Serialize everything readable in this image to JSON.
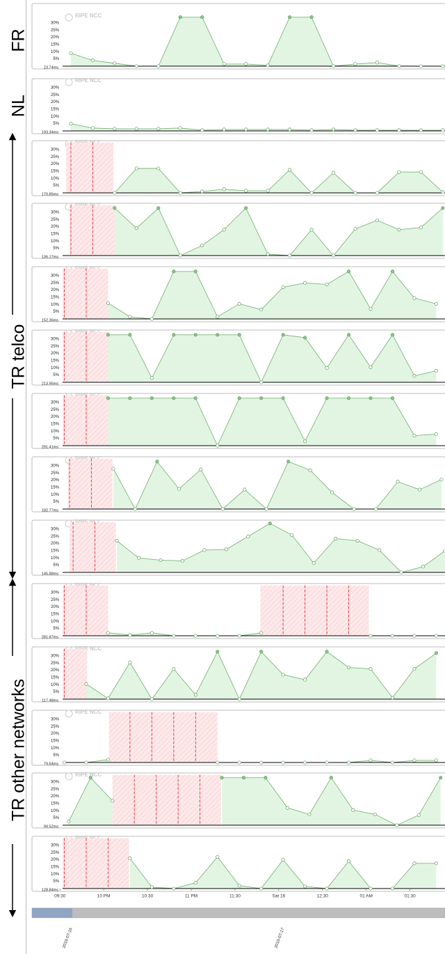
{
  "groups": [
    "FR",
    "NL",
    "TR telco",
    "TR other networks"
  ],
  "watermark": "RIPE NCC",
  "timeline": {
    "dates": [
      "2016-07-16",
      "2016-07-17"
    ]
  },
  "chart_data": [
    {
      "type": "area",
      "baseline_label": "23.74ms",
      "xlim": [
        21.53,
        25.9
      ],
      "ylim": [
        0,
        35
      ],
      "yticks": [
        {
          "value": 5,
          "label": "5%"
        },
        {
          "value": 10,
          "label": "10%"
        },
        {
          "value": 15,
          "label": "15%"
        },
        {
          "value": 20,
          "label": "20%"
        },
        {
          "value": 25,
          "label": "25%"
        },
        {
          "value": 30,
          "label": "30%"
        }
      ],
      "x": [
        21.625,
        21.875,
        22.125,
        22.375,
        22.625,
        22.875,
        23.125,
        23.375,
        23.625,
        23.875,
        24.125,
        24.375,
        24.625,
        24.875,
        25.125,
        25.375,
        25.625,
        25.875
      ],
      "values": [
        9,
        4,
        2,
        0,
        0,
        34,
        34,
        1.5,
        1.5,
        0.5,
        34,
        34,
        0,
        1.5,
        2.5,
        0,
        0,
        0
      ],
      "outages": []
    },
    {
      "type": "area",
      "baseline_label": "193.34ms",
      "xlim": [
        21.53,
        25.9
      ],
      "ylim": [
        0,
        35
      ],
      "yticks": [
        {
          "value": 5,
          "label": "5%"
        },
        {
          "value": 10,
          "label": "10%"
        },
        {
          "value": 15,
          "label": "15%"
        },
        {
          "value": 20,
          "label": "20%"
        },
        {
          "value": 25,
          "label": "25%"
        },
        {
          "value": 30,
          "label": "30%"
        }
      ],
      "x": [
        21.625,
        21.875,
        22.125,
        22.375,
        22.625,
        22.875,
        23.125,
        23.375,
        23.625,
        23.875,
        24.125,
        24.375,
        24.625,
        24.875,
        25.125,
        25.375,
        25.625,
        25.875
      ],
      "values": [
        5,
        2,
        1.5,
        1.5,
        1.5,
        2,
        0.5,
        1,
        1,
        1,
        1,
        0.5,
        1,
        0.5,
        0.5,
        0.5,
        0.5,
        0.5
      ],
      "outages": []
    },
    {
      "type": "area",
      "baseline_label": "170.85ms",
      "xlim": [
        21.53,
        25.9
      ],
      "ylim": [
        0,
        35
      ],
      "yticks": [
        {
          "value": 5,
          "label": "5%"
        },
        {
          "value": 10,
          "label": "10%"
        },
        {
          "value": 15,
          "label": "15%"
        },
        {
          "value": 20,
          "label": "20%"
        },
        {
          "value": 25,
          "label": "25%"
        },
        {
          "value": 30,
          "label": "30%"
        }
      ],
      "x": [
        21.625,
        21.875,
        22.125,
        22.375,
        22.625,
        22.875,
        23.125,
        23.375,
        23.625,
        23.875,
        24.125,
        24.375,
        24.625,
        24.875,
        25.125,
        25.375,
        25.625,
        25.875
      ],
      "values": [
        null,
        null,
        0,
        17,
        17,
        0,
        1,
        2.5,
        1.5,
        1.5,
        16,
        0,
        14,
        0,
        0,
        14.5,
        14.5,
        0.5
      ],
      "outages": [
        [
          21.57,
          22.11
        ]
      ]
    },
    {
      "type": "area",
      "baseline_label": "136.17ms",
      "xlim": [
        21.53,
        25.9
      ],
      "ylim": [
        0,
        35
      ],
      "yticks": [
        {
          "value": 5,
          "label": "5%"
        },
        {
          "value": 10,
          "label": "10%"
        },
        {
          "value": 15,
          "label": "15%"
        },
        {
          "value": 20,
          "label": "20%"
        },
        {
          "value": 25,
          "label": "25%"
        },
        {
          "value": 30,
          "label": "30%"
        }
      ],
      "x": [
        21.625,
        21.875,
        22.125,
        22.375,
        22.625,
        22.875,
        23.125,
        23.375,
        23.625,
        23.875,
        24.125,
        24.375,
        24.625,
        24.875,
        25.125,
        25.375,
        25.625,
        25.875
      ],
      "values": [
        null,
        null,
        33,
        19,
        33,
        0,
        7,
        18,
        33,
        1,
        0,
        18,
        0,
        18.5,
        24.5,
        18,
        19.5,
        33
      ],
      "outages": [
        [
          21.61,
          22.13
        ]
      ]
    },
    {
      "type": "area",
      "baseline_label": "152.36ms",
      "xlim": [
        21.53,
        25.9
      ],
      "ylim": [
        0,
        35
      ],
      "yticks": [
        {
          "value": 5,
          "label": "5%"
        },
        {
          "value": 10,
          "label": "10%"
        },
        {
          "value": 15,
          "label": "15%"
        },
        {
          "value": 20,
          "label": "20%"
        },
        {
          "value": 25,
          "label": "25%"
        },
        {
          "value": 30,
          "label": "30%"
        }
      ],
      "x": [
        21.55,
        21.8,
        22.05,
        22.3,
        22.55,
        22.8,
        23.05,
        23.3,
        23.55,
        23.8,
        24.05,
        24.3,
        24.55,
        24.8,
        25.05,
        25.3,
        25.55,
        25.8
      ],
      "values": [
        null,
        null,
        11,
        1.5,
        0,
        33,
        33,
        1.5,
        10.5,
        6.5,
        22,
        25,
        24,
        33,
        7,
        33,
        14.5,
        10.5
      ],
      "outages": [
        [
          21.53,
          22.05
        ]
      ]
    },
    {
      "type": "area",
      "baseline_label": "213.95ms",
      "xlim": [
        21.53,
        25.9
      ],
      "ylim": [
        0,
        35
      ],
      "yticks": [
        {
          "value": 5,
          "label": "5%"
        },
        {
          "value": 10,
          "label": "10%"
        },
        {
          "value": 15,
          "label": "15%"
        },
        {
          "value": 20,
          "label": "20%"
        },
        {
          "value": 25,
          "label": "25%"
        },
        {
          "value": 30,
          "label": "30%"
        }
      ],
      "x": [
        21.55,
        21.8,
        22.05,
        22.3,
        22.55,
        22.8,
        23.05,
        23.3,
        23.55,
        23.8,
        24.05,
        24.3,
        24.55,
        24.8,
        25.05,
        25.3,
        25.55,
        25.8
      ],
      "values": [
        null,
        null,
        33,
        33,
        3,
        33,
        33,
        33,
        33,
        0,
        33,
        31,
        10,
        33,
        10.5,
        33,
        4.5,
        8
      ],
      "outages": [
        [
          21.53,
          22.06
        ]
      ]
    },
    {
      "type": "area",
      "baseline_label": "291.41ms",
      "xlim": [
        21.53,
        25.9
      ],
      "ylim": [
        0,
        35
      ],
      "yticks": [
        {
          "value": 5,
          "label": "5%"
        },
        {
          "value": 10,
          "label": "10%"
        },
        {
          "value": 15,
          "label": "15%"
        },
        {
          "value": 20,
          "label": "20%"
        },
        {
          "value": 25,
          "label": "25%"
        },
        {
          "value": 30,
          "label": "30%"
        }
      ],
      "x": [
        21.55,
        21.8,
        22.05,
        22.3,
        22.55,
        22.8,
        23.05,
        23.3,
        23.55,
        23.8,
        24.05,
        24.3,
        24.55,
        24.8,
        25.05,
        25.3,
        25.55,
        25.8
      ],
      "values": [
        null,
        null,
        33,
        33,
        33,
        33,
        33,
        0,
        33,
        33,
        33,
        3,
        33,
        33,
        33,
        33,
        7,
        8
      ],
      "outages": [
        [
          21.53,
          22.05
        ]
      ]
    },
    {
      "type": "area",
      "baseline_label": "182.77ms",
      "xlim": [
        21.53,
        25.9
      ],
      "ylim": [
        0,
        35
      ],
      "yticks": [
        {
          "value": 5,
          "label": "5%"
        },
        {
          "value": 10,
          "label": "10%"
        },
        {
          "value": 15,
          "label": "15%"
        },
        {
          "value": 20,
          "label": "20%"
        },
        {
          "value": 25,
          "label": "25%"
        },
        {
          "value": 30,
          "label": "30%"
        }
      ],
      "x": [
        21.61,
        21.86,
        22.11,
        22.36,
        22.61,
        22.86,
        23.11,
        23.36,
        23.61,
        23.86,
        24.11,
        24.36,
        24.61,
        24.86,
        25.11,
        25.36,
        25.61,
        25.86
      ],
      "values": [
        null,
        null,
        28,
        0,
        33,
        14,
        27.5,
        0,
        13.5,
        0,
        33,
        27,
        11.5,
        0,
        0,
        19,
        13.5,
        20.5
      ],
      "outages": [
        [
          21.59,
          22.1
        ]
      ]
    },
    {
      "type": "area",
      "baseline_label": "145.88ms",
      "xlim": [
        21.53,
        25.9
      ],
      "ylim": [
        0,
        35
      ],
      "yticks": [
        {
          "value": 5,
          "label": "5%"
        },
        {
          "value": 10,
          "label": "10%"
        },
        {
          "value": 15,
          "label": "15%"
        },
        {
          "value": 20,
          "label": "20%"
        },
        {
          "value": 25,
          "label": "25%"
        },
        {
          "value": 30,
          "label": "30%"
        }
      ],
      "x": [
        21.65,
        21.9,
        22.15,
        22.4,
        22.65,
        22.9,
        23.15,
        23.4,
        23.65,
        23.9,
        24.15,
        24.4,
        24.65,
        24.9,
        25.15,
        25.4,
        25.65,
        25.9
      ],
      "values": [
        null,
        null,
        22,
        10,
        8.5,
        8,
        15.5,
        16,
        25,
        34,
        26,
        6.5,
        23.5,
        22,
        15.5,
        0,
        4,
        15
      ],
      "outages": [
        [
          21.61,
          22.14
        ]
      ]
    },
    {
      "type": "area",
      "baseline_label": "281.87ms",
      "xlim": [
        21.53,
        25.9
      ],
      "ylim": [
        0,
        35
      ],
      "yticks": [
        {
          "value": 5,
          "label": "5%"
        },
        {
          "value": 10,
          "label": "10%"
        },
        {
          "value": 15,
          "label": "15%"
        },
        {
          "value": 20,
          "label": "20%"
        },
        {
          "value": 25,
          "label": "25%"
        },
        {
          "value": 30,
          "label": "30%"
        }
      ],
      "x": [
        21.55,
        21.8,
        22.05,
        22.3,
        22.55,
        22.8,
        23.05,
        23.3,
        23.55,
        23.8,
        24.05,
        24.3,
        24.55,
        24.8,
        25.05,
        25.3,
        25.55,
        25.8
      ],
      "values": [
        null,
        null,
        2,
        0.5,
        2,
        0,
        0,
        0,
        0,
        2,
        null,
        null,
        null,
        null,
        0,
        0,
        0,
        0
      ],
      "outages": [
        [
          21.53,
          22.05
        ],
        [
          23.79,
          25.03
        ]
      ]
    },
    {
      "type": "area",
      "baseline_label": "117.48ms",
      "xlim": [
        21.53,
        25.9
      ],
      "ylim": [
        0,
        35
      ],
      "yticks": [
        {
          "value": 5,
          "label": "5%"
        },
        {
          "value": 10,
          "label": "10%"
        },
        {
          "value": 15,
          "label": "15%"
        },
        {
          "value": 20,
          "label": "20%"
        },
        {
          "value": 25,
          "label": "25%"
        },
        {
          "value": 30,
          "label": "30%"
        }
      ],
      "x": [
        21.55,
        21.8,
        22.05,
        22.3,
        22.55,
        22.8,
        23.05,
        23.3,
        23.55,
        23.8,
        24.05,
        24.3,
        24.55,
        24.8,
        25.05,
        25.3,
        25.55,
        25.8
      ],
      "values": [
        null,
        10.5,
        0.5,
        25.5,
        0,
        21,
        3,
        33,
        0,
        33,
        17,
        13.5,
        33,
        22,
        21,
        1,
        21,
        32
      ],
      "outages": [
        [
          21.53,
          21.81
        ]
      ]
    },
    {
      "type": "area",
      "baseline_label": "79.64ms",
      "xlim": [
        21.53,
        25.9
      ],
      "ylim": [
        0,
        35
      ],
      "yticks": [
        {
          "value": 5,
          "label": "5%"
        },
        {
          "value": 10,
          "label": "10%"
        },
        {
          "value": 15,
          "label": "15%"
        },
        {
          "value": 20,
          "label": "20%"
        },
        {
          "value": 25,
          "label": "25%"
        },
        {
          "value": 30,
          "label": "30%"
        }
      ],
      "x": [
        21.55,
        21.8,
        22.05,
        22.3,
        22.55,
        22.8,
        23.05,
        23.3,
        23.55,
        23.8,
        24.05,
        24.3,
        24.55,
        24.8,
        25.05,
        25.3,
        25.55,
        25.8
      ],
      "values": [
        0,
        0,
        2,
        null,
        null,
        null,
        null,
        0,
        0,
        0,
        0,
        0,
        0,
        0,
        1.5,
        0,
        1.5,
        1.5
      ],
      "outages": [
        [
          22.06,
          23.3
        ]
      ]
    },
    {
      "type": "area",
      "baseline_label": "99.52ms",
      "xlim": [
        21.53,
        25.9
      ],
      "ylim": [
        0,
        35
      ],
      "yticks": [
        {
          "value": 5,
          "label": "5%"
        },
        {
          "value": 10,
          "label": "10%"
        },
        {
          "value": 15,
          "label": "15%"
        },
        {
          "value": 20,
          "label": "20%"
        },
        {
          "value": 25,
          "label": "25%"
        },
        {
          "value": 30,
          "label": "30%"
        }
      ],
      "x": [
        21.6,
        21.85,
        22.1,
        22.35,
        22.6,
        22.85,
        23.1,
        23.35,
        23.6,
        23.85,
        24.1,
        24.35,
        24.6,
        24.85,
        25.1,
        25.35,
        25.6,
        25.85
      ],
      "values": [
        2.5,
        33,
        17,
        null,
        null,
        null,
        null,
        33,
        33,
        33,
        12,
        7.5,
        33,
        10.5,
        7.5,
        0,
        7,
        33
      ],
      "outages": [
        [
          22.1,
          23.34
        ]
      ]
    },
    {
      "type": "area",
      "baseline_label": "128.84ms",
      "xlim": [
        21.53,
        25.9
      ],
      "ylim": [
        0,
        35
      ],
      "yticks": [
        {
          "value": 5,
          "label": "5%"
        },
        {
          "value": 10,
          "label": "10%"
        },
        {
          "value": 15,
          "label": "15%"
        },
        {
          "value": 20,
          "label": "20%"
        },
        {
          "value": 25,
          "label": "25%"
        },
        {
          "value": 30,
          "label": "30%"
        }
      ],
      "xticks": [
        {
          "value": 21.5,
          "label": "09:30"
        },
        {
          "value": 22,
          "label": "10 PM"
        },
        {
          "value": 22.5,
          "label": "10:30"
        },
        {
          "value": 23,
          "label": "11 PM"
        },
        {
          "value": 23.5,
          "label": "11:30"
        },
        {
          "value": 24,
          "label": "Sat 16"
        },
        {
          "value": 24.5,
          "label": "12:30"
        },
        {
          "value": 25,
          "label": "01 AM"
        },
        {
          "value": 25.5,
          "label": "01:30"
        }
      ],
      "x": [
        21.55,
        21.8,
        22.05,
        22.3,
        22.55,
        22.8,
        23.05,
        23.3,
        23.55,
        23.8,
        24.05,
        24.3,
        24.55,
        24.8,
        25.05,
        25.3,
        25.55,
        25.8
      ],
      "values": [
        null,
        null,
        null,
        21,
        1,
        0,
        4,
        22,
        2,
        0,
        20,
        1.5,
        0,
        19,
        0,
        0,
        17.5,
        17.5
      ],
      "outages": [
        [
          21.53,
          22.29
        ]
      ]
    }
  ]
}
